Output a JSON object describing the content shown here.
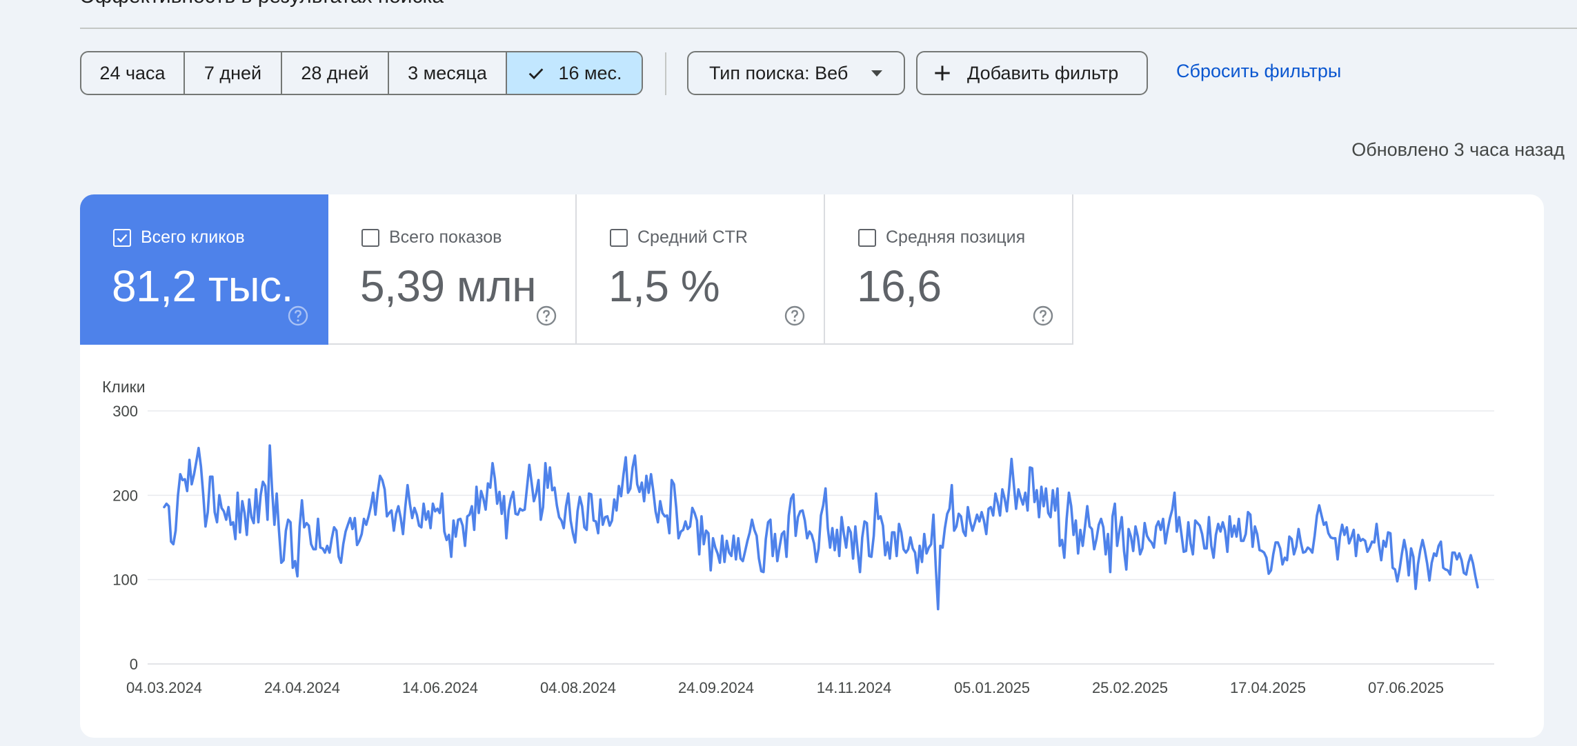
{
  "header": {
    "title_partial": "Эффективность в результатах поиска"
  },
  "date_range": {
    "options": [
      "24 часа",
      "7 дней",
      "28 дней",
      "3 месяца",
      "16 мес."
    ],
    "selected_index": 4
  },
  "filters": {
    "search_type_label": "Тип поиска: Веб",
    "add_filter_label": "Добавить фильтр",
    "reset_label": "Сбросить фильтры"
  },
  "updated_text": "Обновлено 3 часа назад",
  "metrics": [
    {
      "label": "Всего кликов",
      "value": "81,2 тыс.",
      "checked": true,
      "color": "#4e82ea"
    },
    {
      "label": "Всего показов",
      "value": "5,39 млн",
      "checked": false
    },
    {
      "label": "Средний CTR",
      "value": "1,5 %",
      "checked": false
    },
    {
      "label": "Средняя позиция",
      "value": "16,6",
      "checked": false
    }
  ],
  "icons": {
    "selected_range": "check-icon",
    "search_type": "caret-down-icon",
    "add_filter": "plus-icon",
    "metric_help": "help-circle-icon"
  },
  "chart_data": {
    "type": "line",
    "ylabel": "Клики",
    "ylim": [
      0,
      300
    ],
    "yticks": [
      0,
      100,
      200,
      300
    ],
    "x_start": "2024-03-04",
    "x_end": "2025-07-02",
    "xtick_labels": [
      "04.03.2024",
      "24.04.2024",
      "14.06.2024",
      "04.08.2024",
      "24.09.2024",
      "14.11.2024",
      "05.01.2025",
      "25.02.2025",
      "17.04.2025",
      "07.06.2025"
    ],
    "grid": true,
    "series": [
      {
        "color": "#4e82ea",
        "values": [
          186,
          190,
          187,
          145,
          142,
          158,
          200,
          225,
          218,
          219,
          205,
          242,
          213,
          225,
          240,
          256,
          234,
          201,
          163,
          180,
          222,
          222,
          180,
          168,
          200,
          185,
          181,
          171,
          186,
          165,
          168,
          148,
          203,
          156,
          193,
          179,
          153,
          195,
          174,
          167,
          207,
          168,
          200,
          216,
          211,
          171,
          259,
          207,
          165,
          202,
          158,
          120,
          123,
          158,
          171,
          168,
          114,
          122,
          104,
          163,
          194,
          162,
          167,
          164,
          142,
          136,
          136,
          172,
          138,
          137,
          132,
          140,
          132,
          149,
          162,
          158,
          127,
          120,
          142,
          157,
          165,
          173,
          160,
          173,
          141,
          146,
          154,
          172,
          165,
          175,
          187,
          203,
          177,
          204,
          223,
          218,
          207,
          175,
          179,
          182,
          158,
          178,
          187,
          173,
          154,
          186,
          212,
          190,
          173,
          185,
          177,
          164,
          162,
          190,
          171,
          181,
          161,
          190,
          181,
          184,
          179,
          202,
          157,
          147,
          153,
          127,
          170,
          151,
          171,
          172,
          164,
          140,
          175,
          177,
          187,
          159,
          210,
          179,
          205,
          196,
          183,
          214,
          209,
          238,
          220,
          190,
          204,
          178,
          199,
          149,
          182,
          196,
          204,
          178,
          177,
          184,
          182,
          183,
          209,
          236,
          215,
          193,
          202,
          218,
          171,
          186,
          238,
          209,
          233,
          206,
          209,
          188,
          174,
          170,
          161,
          187,
          202,
          170,
          155,
          144,
          181,
          198,
          187,
          162,
          159,
          202,
          201,
          170,
          169,
          155,
          195,
          165,
          174,
          175,
          164,
          170,
          195,
          182,
          211,
          199,
          224,
          245,
          203,
          208,
          233,
          247,
          213,
          204,
          215,
          193,
          223,
          203,
          225,
          205,
          181,
          168,
          193,
          179,
          175,
          176,
          155,
          218,
          213,
          185,
          149,
          157,
          159,
          169,
          160,
          163,
          185,
          179,
          170,
          130,
          175,
          142,
          158,
          155,
          111,
          149,
          138,
          131,
          120,
          152,
          121,
          146,
          132,
          128,
          152,
          124,
          149,
          125,
          122,
          134,
          146,
          156,
          171,
          159,
          152,
          125,
          110,
          109,
          148,
          168,
          171,
          128,
          154,
          122,
          139,
          154,
          157,
          127,
          176,
          196,
          201,
          152,
          174,
          181,
          182,
          170,
          149,
          157,
          153,
          143,
          121,
          137,
          176,
          188,
          208,
          161,
          138,
          161,
          135,
          159,
          128,
          174,
          154,
          138,
          162,
          156,
          125,
          163,
          134,
          109,
          150,
          169,
          167,
          128,
          127,
          152,
          202,
          172,
          175,
          164,
          129,
          144,
          125,
          156,
          156,
          128,
          166,
          156,
          136,
          132,
          136,
          150,
          137,
          132,
          108,
          140,
          121,
          154,
          131,
          138,
          142,
          177,
          117,
          65,
          140,
          138,
          161,
          178,
          184,
          212,
          158,
          163,
          178,
          175,
          157,
          152,
          186,
          169,
          158,
          167,
          177,
          169,
          180,
          170,
          154,
          184,
          186,
          176,
          202,
          191,
          176,
          207,
          196,
          181,
          210,
          243,
          213,
          184,
          207,
          197,
          189,
          203,
          182,
          233,
          232,
          192,
          206,
          174,
          210,
          187,
          208,
          179,
          174,
          206,
          182,
          208,
          140,
          147,
          126,
          172,
          203,
          187,
          153,
          170,
          131,
          159,
          140,
          163,
          187,
          163,
          160,
          136,
          148,
          165,
          172,
          162,
          130,
          154,
          109,
          175,
          190,
          140,
          158,
          174,
          134,
          112,
          160,
          151,
          134,
          163,
          151,
          130,
          137,
          167,
          152,
          147,
          144,
          138,
          163,
          169,
          159,
          172,
          143,
          159,
          173,
          183,
          203,
          157,
          174,
          154,
          133,
          134,
          168,
          143,
          130,
          170,
          167,
          164,
          154,
          137,
          137,
          174,
          140,
          126,
          153,
          166,
          157,
          168,
          158,
          133,
          175,
          151,
          164,
          151,
          172,
          146,
          146,
          154,
          180,
          177,
          139,
          163,
          154,
          135,
          134,
          132,
          126,
          107,
          111,
          130,
          144,
          144,
          137,
          118,
          126,
          123,
          151,
          148,
          130,
          139,
          160,
          144,
          132,
          133,
          138,
          136,
          132,
          152,
          176,
          188,
          176,
          165,
          168,
          155,
          150,
          149,
          149,
          124,
          151,
          165,
          153,
          162,
          143,
          150,
          159,
          128,
          153,
          146,
          148,
          146,
          133,
          138,
          145,
          144,
          166,
          141,
          123,
          146,
          139,
          156,
          155,
          114,
          112,
          98,
          112,
          131,
          147,
          133,
          105,
          137,
          127,
          89,
          118,
          135,
          147,
          135,
          119,
          99,
          120,
          131,
          128,
          140,
          145,
          114,
          112,
          111,
          106,
          132,
          132,
          124,
          131,
          123,
          108,
          106,
          120,
          129,
          119,
          104,
          91
        ]
      }
    ]
  }
}
